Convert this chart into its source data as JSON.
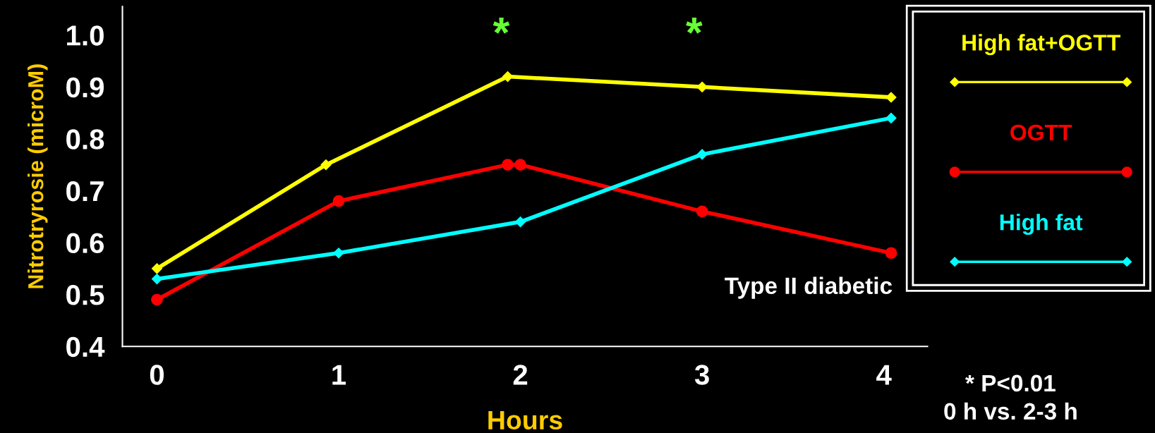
{
  "chart_data": {
    "type": "line",
    "xlabel": "Hours",
    "ylabel": "Nitrotryrosie (microM)",
    "xlim": [
      -0.19,
      4.24
    ],
    "xticks": [
      0,
      1,
      2,
      3,
      4
    ],
    "ylim": [
      0.4,
      1.055
    ],
    "yticks": [
      {
        "value": 0.4,
        "label": "0.4"
      },
      {
        "value": 0.5,
        "label": "0.5"
      },
      {
        "value": 0.6,
        "label": "0.6"
      },
      {
        "value": 0.7,
        "label": "0.7"
      },
      {
        "value": 0.8,
        "label": "0.8"
      },
      {
        "value": 0.9,
        "label": "0.9"
      },
      {
        "value": 1.0,
        "label": "1.0"
      }
    ],
    "series": [
      {
        "name": "High fat+OGTT",
        "color": "#ffff00",
        "marker": "diamond",
        "x": [
          0,
          0.93,
          1.93,
          3,
          4.04
        ],
        "values": [
          0.55,
          0.75,
          0.92,
          0.9,
          0.88
        ]
      },
      {
        "name": "OGTT",
        "color": "#ff0000",
        "marker": "circle",
        "x": [
          0,
          1,
          1.93,
          2,
          3,
          4.04
        ],
        "values": [
          0.49,
          0.68,
          0.75,
          0.75,
          0.66,
          0.58
        ]
      },
      {
        "name": "High fat",
        "color": "#00ffff",
        "marker": "diamond",
        "x": [
          0,
          1,
          2,
          3,
          4.04
        ],
        "values": [
          0.53,
          0.58,
          0.64,
          0.77,
          0.84
        ]
      }
    ],
    "annotations": [
      "*",
      "*",
      "Type II diabetic",
      "* P<0.01",
      "0 h vs. 2-3 h"
    ],
    "legend": "right",
    "grid": false
  }
}
